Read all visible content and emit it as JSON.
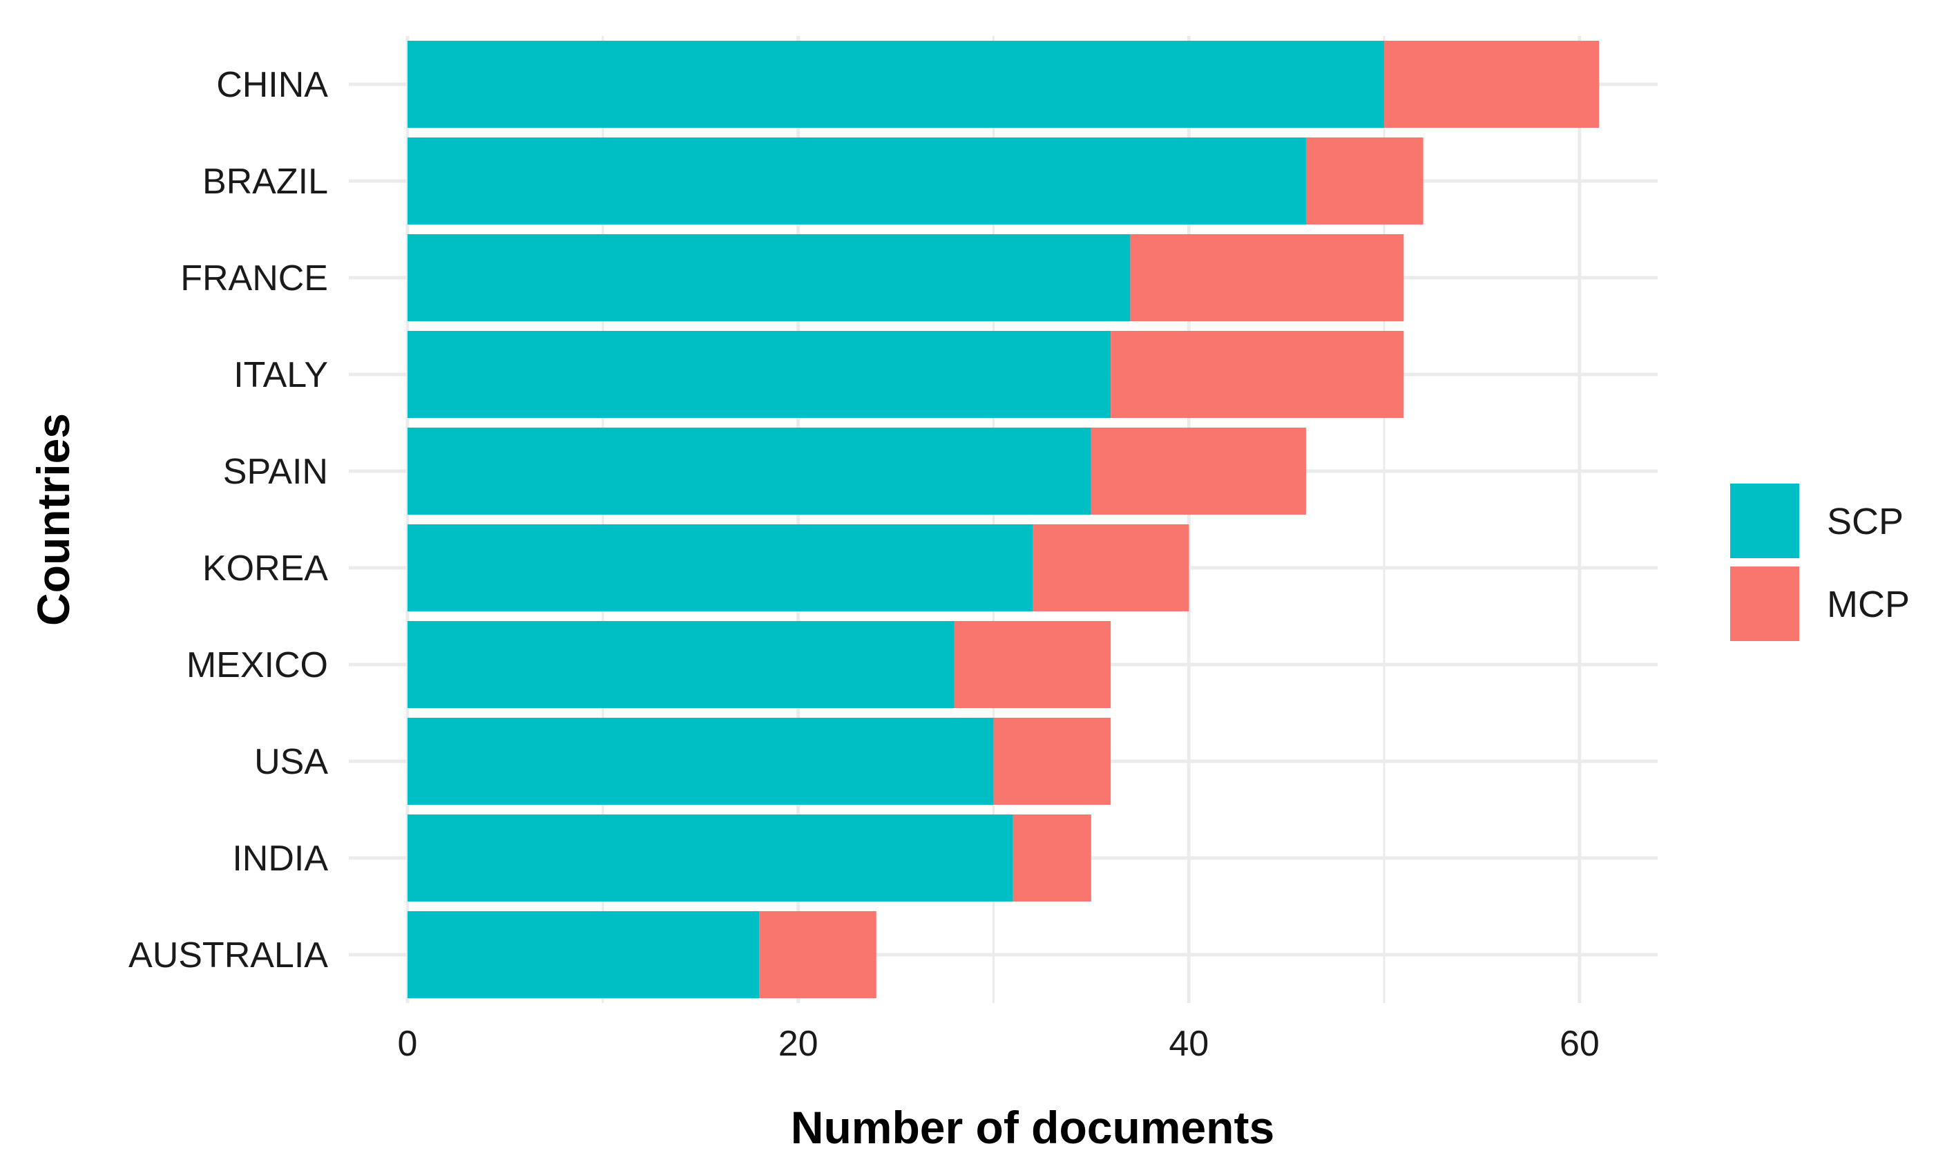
{
  "chart_data": {
    "type": "bar",
    "orientation": "horizontal",
    "stacked": true,
    "title": "",
    "xlabel": "Number of documents",
    "ylabel": "Countries",
    "xlim": [
      0,
      64
    ],
    "xticks": [
      0,
      20,
      40,
      60
    ],
    "grid": true,
    "legend_position": "right",
    "categories": [
      "CHINA",
      "BRAZIL",
      "FRANCE",
      "ITALY",
      "SPAIN",
      "KOREA",
      "MEXICO",
      "USA",
      "INDIA",
      "AUSTRALIA"
    ],
    "series": [
      {
        "name": "SCP",
        "color": "#00BFC4",
        "values": [
          50,
          46,
          37,
          36,
          35,
          32,
          28,
          30,
          31,
          18
        ]
      },
      {
        "name": "MCP",
        "color": "#F8766D",
        "values": [
          11,
          6,
          14,
          15,
          11,
          8,
          8,
          6,
          4,
          6
        ]
      }
    ]
  }
}
